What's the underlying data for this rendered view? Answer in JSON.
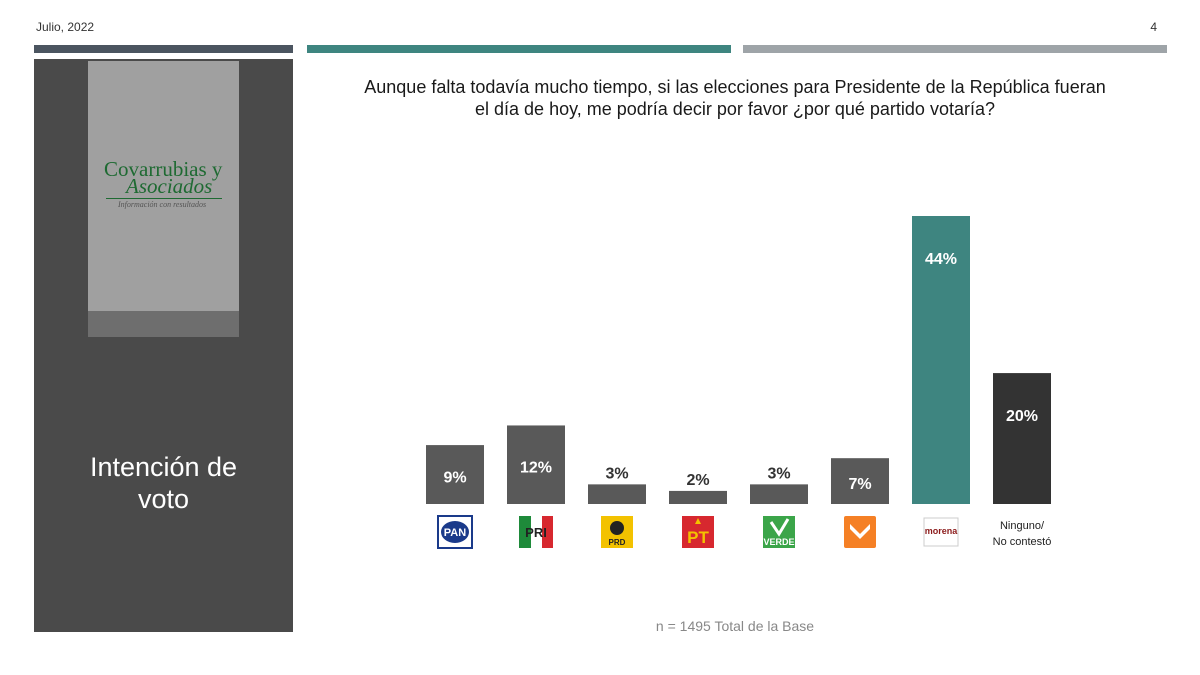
{
  "header": {
    "date": "Julio, 2022",
    "page_number": "4"
  },
  "colors": {
    "stripe_dark": "#4b5560",
    "stripe_teal": "#3e8580",
    "stripe_light": "#9ea4a8",
    "bar_default": "#595959",
    "bar_morena": "#3e8580",
    "bar_none": "#333333"
  },
  "sidebar": {
    "logo": {
      "line1": "Covarrubias y",
      "line2": "Asociados",
      "tagline": "Información con resultados"
    },
    "section_title_line1": "Intención de",
    "section_title_line2": "voto"
  },
  "question": {
    "line1": "Aunque falta todavía mucho tiempo, si las elecciones para Presidente de la República fueran",
    "line2": "el día de hoy, me podría decir por favor ¿por qué partido votaría?"
  },
  "chart_data": {
    "type": "bar",
    "categories": [
      "PAN",
      "PRI",
      "PRD",
      "PT",
      "VERDE",
      "MC",
      "morena",
      "Ninguno/ No contestó"
    ],
    "values": [
      9,
      12,
      3,
      2,
      3,
      7,
      44,
      20
    ],
    "data_labels": [
      "9%",
      "12%",
      "3%",
      "2%",
      "3%",
      "7%",
      "44%",
      "20%"
    ],
    "logo_icons": [
      "pan-logo",
      "pri-logo",
      "prd-logo",
      "pt-logo",
      "verde-logo",
      "mc-logo",
      "morena-logo"
    ],
    "logo_texts": [
      "PAN",
      "PRI",
      "PRD",
      "PT",
      "VERDE",
      "",
      "morena"
    ],
    "text_category_lines": [
      "Ninguno/",
      "No contestó"
    ],
    "bar_colors": [
      "#595959",
      "#595959",
      "#595959",
      "#595959",
      "#595959",
      "#595959",
      "#3e8580",
      "#333333"
    ],
    "ylim": [
      0,
      44
    ],
    "grid": false
  },
  "footnote": "n = 1495 Total de la Base"
}
